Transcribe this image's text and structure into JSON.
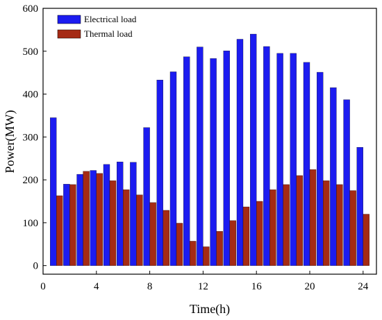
{
  "chart_data": {
    "type": "bar",
    "xlabel": "Time(h)",
    "ylabel": "Power(MW)",
    "xlim": [
      0,
      25
    ],
    "ylim": [
      -20,
      600
    ],
    "xticks": [
      0,
      4,
      8,
      12,
      16,
      20,
      24
    ],
    "yticks": [
      0,
      100,
      200,
      300,
      400,
      500,
      600
    ],
    "tick_labels": {
      "x": [
        "0",
        "4",
        "8",
        "12",
        "16",
        "20",
        "24"
      ],
      "y": [
        "0",
        "100",
        "200",
        "300",
        "400",
        "500",
        "600"
      ]
    },
    "grid": false,
    "legend_position": "top-left",
    "hours": [
      1,
      2,
      3,
      4,
      5,
      6,
      7,
      8,
      9,
      10,
      11,
      12,
      13,
      14,
      15,
      16,
      17,
      18,
      19,
      20,
      21,
      22,
      23,
      24
    ],
    "series": [
      {
        "name": "Electrical load",
        "color": "#1c1cf0",
        "values": [
          345,
          190,
          213,
          222,
          236,
          242,
          241,
          322,
          433,
          452,
          487,
          510,
          483,
          501,
          528,
          540,
          511,
          495,
          495,
          474,
          451,
          415,
          387,
          276
        ]
      },
      {
        "name": "Thermal load",
        "color": "#a52a14",
        "values": [
          163,
          189,
          220,
          215,
          198,
          177,
          165,
          147,
          129,
          99,
          57,
          44,
          80,
          105,
          137,
          150,
          177,
          189,
          210,
          224,
          198,
          189,
          175,
          120
        ]
      }
    ]
  }
}
